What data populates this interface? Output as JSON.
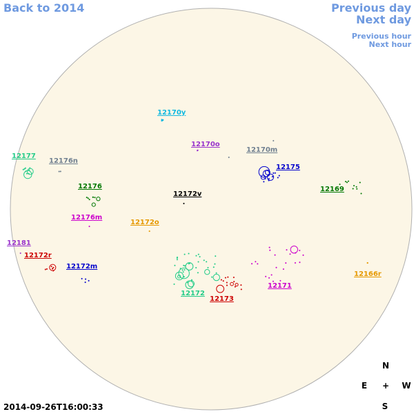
{
  "navigation": {
    "back_to_year": "Back to 2014",
    "previous_day": "Previous day",
    "next_day": "Next day",
    "previous_hour": "Previous hour",
    "next_hour": "Next hour"
  },
  "regions": [
    {
      "label": "12170y",
      "color": "#10b8e0"
    },
    {
      "label": "12170o",
      "color": "#9933cc"
    },
    {
      "label": "12170m",
      "color": "#708090"
    },
    {
      "label": "12175",
      "color": "#0000cc"
    },
    {
      "label": "12177",
      "color": "#22cc88"
    },
    {
      "label": "12176n",
      "color": "#708090"
    },
    {
      "label": "12176",
      "color": "#007700"
    },
    {
      "label": "12172v",
      "color": "#000000"
    },
    {
      "label": "12169",
      "color": "#007700"
    },
    {
      "label": "12176m",
      "color": "#cc00cc"
    },
    {
      "label": "12172o",
      "color": "#e69900"
    },
    {
      "label": "12181",
      "color": "#9933cc"
    },
    {
      "label": "12172r",
      "color": "#cc0000"
    },
    {
      "label": "12172m",
      "color": "#0000cc"
    },
    {
      "label": "12166r",
      "color": "#e69900"
    },
    {
      "label": "12172",
      "color": "#22cc88"
    },
    {
      "label": "12173",
      "color": "#cc0000"
    },
    {
      "label": "12171",
      "color": "#cc00cc"
    }
  ],
  "compass": {
    "north": "N",
    "east": "E",
    "center": "+",
    "west": "W",
    "south": "S"
  },
  "timestamp": "2014-09-26T16:00:33"
}
